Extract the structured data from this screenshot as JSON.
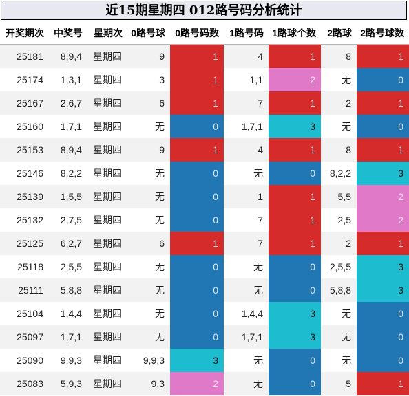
{
  "title": "近15期星期四 012路号码分析统计",
  "colors": {
    "1": "#d52b2b",
    "0": "#2176b4",
    "3": "#1dbdcf",
    "2": "#e07ac8"
  },
  "chart_data": {
    "type": "table",
    "headers": [
      "开奖期次",
      "中奖号",
      "星期次",
      "0路号球",
      "0路号码数",
      "1路号码",
      "1路球个数",
      "2路球",
      "2路号球数"
    ],
    "rows": [
      [
        "25181",
        "8,9,4",
        "星期四",
        "9",
        "1",
        "4",
        "1",
        "8",
        "1"
      ],
      [
        "25174",
        "1,3,1",
        "星期四",
        "3",
        "1",
        "1,1",
        "2",
        "无",
        "0"
      ],
      [
        "25167",
        "2,6,7",
        "星期四",
        "6",
        "1",
        "7",
        "1",
        "2",
        "1"
      ],
      [
        "25160",
        "1,7,1",
        "星期四",
        "无",
        "0",
        "1,7,1",
        "3",
        "无",
        "0"
      ],
      [
        "25153",
        "8,9,4",
        "星期四",
        "9",
        "1",
        "4",
        "1",
        "8",
        "1"
      ],
      [
        "25146",
        "8,2,2",
        "星期四",
        "无",
        "0",
        "无",
        "0",
        "8,2,2",
        "3"
      ],
      [
        "25139",
        "1,5,5",
        "星期四",
        "无",
        "0",
        "1",
        "1",
        "5,5",
        "2"
      ],
      [
        "25132",
        "2,7,5",
        "星期四",
        "无",
        "0",
        "7",
        "1",
        "2,5",
        "2"
      ],
      [
        "25125",
        "6,2,7",
        "星期四",
        "6",
        "1",
        "7",
        "1",
        "2",
        "1"
      ],
      [
        "25118",
        "2,5,5",
        "星期四",
        "无",
        "0",
        "无",
        "0",
        "2,5,5",
        "3"
      ],
      [
        "25111",
        "5,8,8",
        "星期四",
        "无",
        "0",
        "无",
        "0",
        "5,8,8",
        "3"
      ],
      [
        "25104",
        "1,4,4",
        "星期四",
        "无",
        "0",
        "1,4,4",
        "3",
        "无",
        "0"
      ],
      [
        "25097",
        "1,7,1",
        "星期四",
        "无",
        "0",
        "1,7,1",
        "3",
        "无",
        "0"
      ],
      [
        "25090",
        "9,9,3",
        "星期四",
        "9,9,3",
        "3",
        "无",
        "0",
        "无",
        "0"
      ],
      [
        "25083",
        "5,9,3",
        "星期四",
        "9,3",
        "2",
        "无",
        "0",
        "5",
        "1"
      ]
    ]
  }
}
